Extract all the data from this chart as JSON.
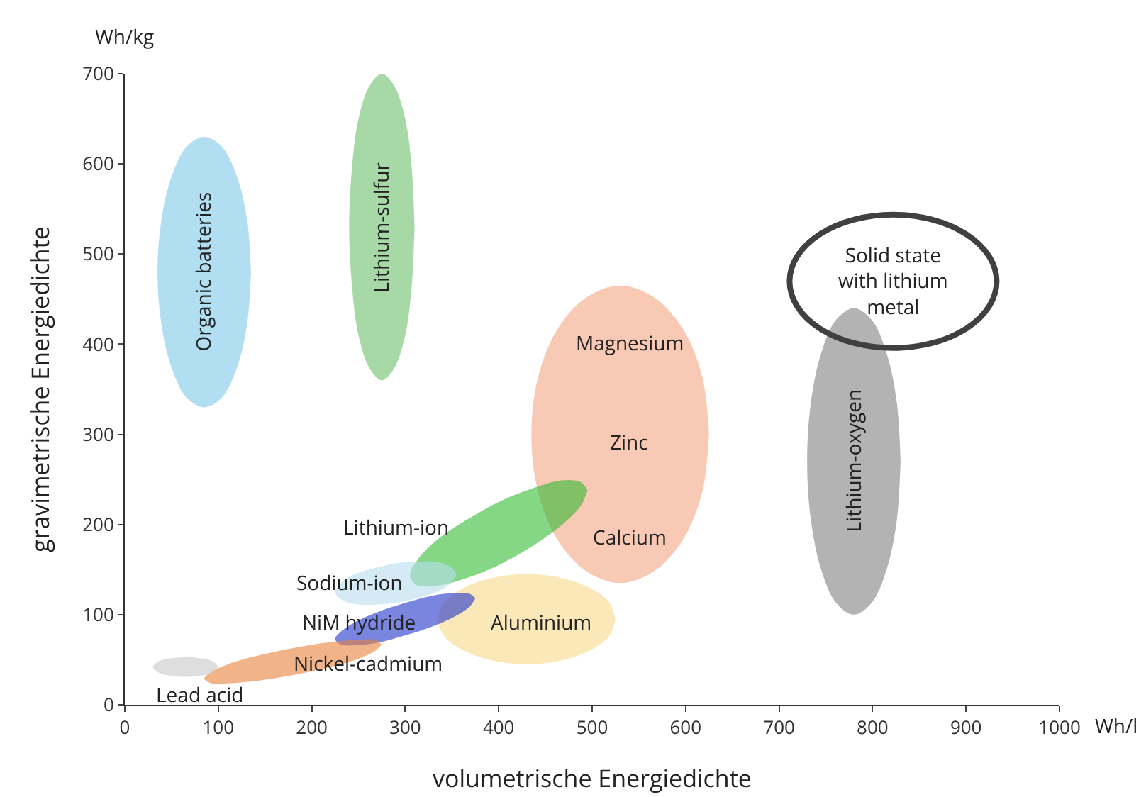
{
  "chart_data": {
    "type": "area",
    "xlabel": "volumetrische Energiedichte",
    "ylabel": "gravimetrische Energiedichte",
    "xlim": [
      0,
      1000
    ],
    "xticks": [
      0,
      100,
      200,
      300,
      400,
      500,
      600,
      700,
      800,
      900,
      1000
    ],
    "ylim": [
      0,
      700
    ],
    "yticks": [
      0,
      100,
      200,
      300,
      400,
      500,
      600,
      700
    ],
    "grid": false,
    "series": [
      {
        "color": "#7ec8e8",
        "x": [
          35,
          39,
          50,
          66,
          85,
          104,
          120,
          131,
          135
        ],
        "values": [
          null,
          null,
          null,
          null,
          null,
          null,
          null,
          null,
          null
        ],
        "lower": [
          480,
          423,
          374,
          341,
          330,
          341,
          374,
          423,
          480
        ],
        "upper": [
          480,
          537,
          586,
          619,
          630,
          619,
          586,
          537,
          480
        ]
      },
      {
        "color": "#6cbf6c",
        "x": [
          240,
          243,
          250,
          262,
          275,
          288,
          300,
          307,
          310
        ],
        "values": [
          null,
          null,
          null,
          null,
          null,
          null,
          null,
          null,
          null
        ],
        "lower": [
          530,
          465,
          410,
          373,
          360,
          373,
          410,
          465,
          530
        ],
        "upper": [
          530,
          595,
          650,
          687,
          700,
          687,
          650,
          595,
          530
        ]
      },
      {
        "color": "#f4a582",
        "x": [
          435,
          442,
          463,
          494,
          530,
          566,
          597,
          618,
          625
        ],
        "values": [
          null,
          null,
          null,
          null,
          null,
          null,
          null,
          null,
          null
        ],
        "lower": [
          300,
          237,
          183,
          148,
          135,
          148,
          183,
          237,
          300
        ],
        "upper": [
          300,
          363,
          417,
          452,
          465,
          452,
          417,
          363,
          300
        ]
      },
      {
        "color": "#808080",
        "x": [
          730,
          734,
          745,
          761,
          780,
          799,
          815,
          826,
          830
        ],
        "values": [
          null,
          null,
          null,
          null,
          null,
          null,
          null,
          null,
          null
        ],
        "lower": [
          270,
          205,
          150,
          113,
          100,
          113,
          150,
          205,
          270
        ],
        "upper": [
          270,
          335,
          390,
          427,
          440,
          427,
          390,
          335,
          270
        ]
      },
      {
        "color": "#f9d98a",
        "x": [
          335,
          342,
          363,
          394,
          430,
          466,
          497,
          518,
          525
        ],
        "values": [
          null,
          null,
          null,
          null,
          null,
          null,
          null,
          null,
          null
        ],
        "lower": [
          95,
          76,
          60,
          49,
          45,
          49,
          60,
          76,
          95
        ],
        "upper": [
          95,
          114,
          130,
          141,
          145,
          141,
          130,
          114,
          95
        ]
      },
      {
        "color": "#33bb33",
        "x": [
          305,
          312,
          333,
          364,
          400,
          436,
          467,
          488,
          495
        ],
        "values": [
          null,
          null,
          null,
          null,
          null,
          null,
          null,
          null,
          null
        ],
        "lower": [
          143,
          133,
          132,
          140,
          155,
          176,
          199,
          221,
          238
        ],
        "upper": [
          143,
          159,
          182,
          204,
          225,
          240,
          249,
          247,
          238
        ]
      },
      {
        "color": "#b8def0",
        "x": [
          225,
          230,
          244,
          265,
          290,
          315,
          336,
          350,
          355
        ],
        "values": [
          null,
          null,
          null,
          null,
          null,
          null,
          null,
          null,
          null
        ],
        "lower": [
          125,
          118,
          112,
          111,
          113,
          119,
          126,
          136,
          145
        ],
        "upper": [
          125,
          134,
          144,
          151,
          157,
          159,
          158,
          152,
          145
        ]
      },
      {
        "color": "#2233cc",
        "x": [
          225,
          231,
          247,
          271,
          300,
          329,
          353,
          369,
          375
        ],
        "values": [
          null,
          null,
          null,
          null,
          null,
          null,
          null,
          null,
          null
        ],
        "lower": [
          73,
          67,
          66,
          69,
          77,
          87,
          98,
          109,
          118
        ],
        "upper": [
          73,
          81,
          92,
          103,
          113,
          121,
          124,
          123,
          118
        ]
      },
      {
        "color": "#e8823a",
        "x": [
          85,
          92,
          113,
          144,
          180,
          216,
          247,
          268,
          275
        ],
        "values": [
          null,
          null,
          null,
          null,
          null,
          null,
          null,
          null,
          null
        ],
        "lower": [
          29,
          24,
          24,
          27,
          33,
          41,
          50,
          60,
          67
        ],
        "upper": [
          29,
          36,
          46,
          55,
          63,
          69,
          72,
          72,
          67
        ]
      },
      {
        "color": "#c8c8c8",
        "x": [
          30,
          33,
          40,
          52,
          65,
          78,
          90,
          97,
          100
        ],
        "values": [
          null,
          null,
          null,
          null,
          null,
          null,
          null,
          null,
          null
        ],
        "lower": [
          42,
          38,
          34,
          32,
          31,
          32,
          34,
          38,
          42
        ],
        "upper": [
          42,
          46,
          50,
          52,
          53,
          52,
          50,
          46,
          42
        ]
      }
    ],
    "annotations": [
      "Wh/l",
      "Wh/kg",
      "Organic batteries",
      "Lithium-sulfur",
      "Magnesium",
      "Zinc",
      "Calcium",
      "Lithium-oxygen",
      "Solid state with lithium metal",
      "Lithium-ion",
      "Sodium-ion",
      "NiM hydride",
      "Aluminium",
      "Nickel-cadmium",
      "Lead acid"
    ]
  }
}
